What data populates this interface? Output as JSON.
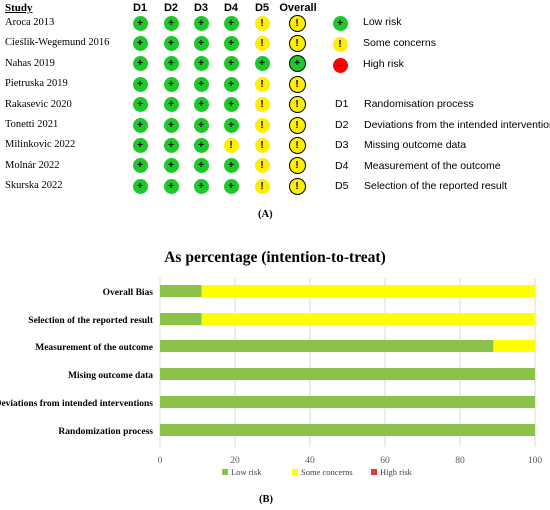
{
  "top": {
    "study_header": "Study",
    "domain_headers": [
      "D1",
      "D2",
      "D3",
      "D4",
      "D5",
      "Overall"
    ],
    "studies": [
      {
        "name": "Aroca 2013",
        "judgements": [
          "low",
          "low",
          "low",
          "low",
          "some",
          "some"
        ]
      },
      {
        "name": "Cieślik-Wegemund 2016",
        "judgements": [
          "low",
          "low",
          "low",
          "low",
          "some",
          "some"
        ]
      },
      {
        "name": "Nahas 2019",
        "judgements": [
          "low",
          "low",
          "low",
          "low",
          "low",
          "low"
        ]
      },
      {
        "name": "Pietruska 2019",
        "judgements": [
          "low",
          "low",
          "low",
          "low",
          "some",
          "some"
        ]
      },
      {
        "name": "Rakasevic 2020",
        "judgements": [
          "low",
          "low",
          "low",
          "low",
          "some",
          "some"
        ]
      },
      {
        "name": "Tonetti 2021",
        "judgements": [
          "low",
          "low",
          "low",
          "low",
          "some",
          "some"
        ]
      },
      {
        "name": "Milinkovic 2022",
        "judgements": [
          "low",
          "low",
          "low",
          "some",
          "some",
          "some"
        ]
      },
      {
        "name": "Molnár 2022",
        "judgements": [
          "low",
          "low",
          "low",
          "low",
          "some",
          "some"
        ]
      },
      {
        "name": "Skurska 2022",
        "judgements": [
          "low",
          "low",
          "low",
          "low",
          "some",
          "some"
        ]
      }
    ],
    "symbols": {
      "low": "+",
      "some": "!",
      "high": "–"
    },
    "colors": {
      "low": "#1ec72a",
      "some": "#ffee00",
      "high": "#ff0000"
    },
    "legend": [
      {
        "key": "low",
        "label": "Low risk"
      },
      {
        "key": "some",
        "label": "Some concerns"
      },
      {
        "key": "high",
        "label": "High risk"
      }
    ],
    "domain_key": [
      {
        "code": "D1",
        "label": "Randomisation process"
      },
      {
        "code": "D2",
        "label": "Deviations from the intended interventions"
      },
      {
        "code": "D3",
        "label": "Missing outcome data"
      },
      {
        "code": "D4",
        "label": "Measurement of the outcome"
      },
      {
        "code": "D5",
        "label": "Selection of the reported result"
      }
    ],
    "caption": "(A)"
  },
  "chart_data": {
    "type": "bar",
    "orientation": "horizontal",
    "stacked": true,
    "title": "As percentage (intention-to-treat)",
    "categories": [
      "Overall Bias",
      "Selection of the reported result",
      "Measurement of the outcome",
      "Mising outcome data",
      "Deviations from intended interventions",
      "Randomization process"
    ],
    "series": [
      {
        "name": "Low risk",
        "color": "#8bc34a",
        "values": [
          11.1,
          11.1,
          88.9,
          100,
          100,
          100
        ]
      },
      {
        "name": "Some concerns",
        "color": "#ffff00",
        "values": [
          88.9,
          88.9,
          11.1,
          0,
          0,
          0
        ]
      },
      {
        "name": "High risk",
        "color": "#e53935",
        "values": [
          0,
          0,
          0,
          0,
          0,
          0
        ]
      }
    ],
    "xlim": [
      0,
      100
    ],
    "xticks": [
      "0",
      "20",
      "40",
      "60",
      "80",
      "100"
    ],
    "legend_position": "bottom",
    "caption": "(B)"
  }
}
